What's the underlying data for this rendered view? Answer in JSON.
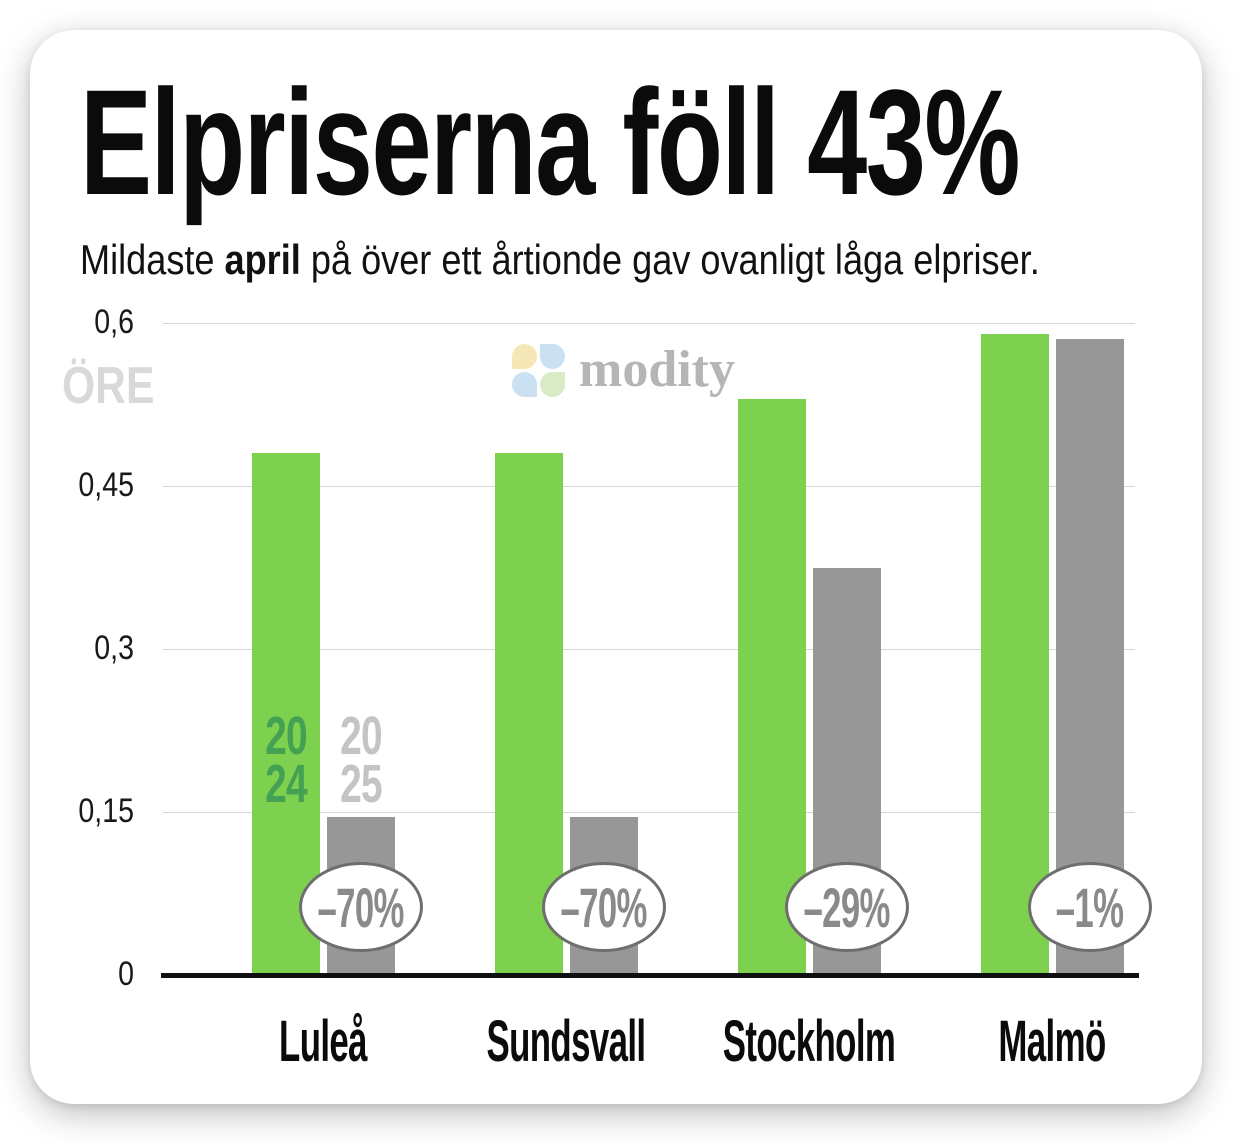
{
  "page": {
    "title": "Elpriserna föll 43%",
    "subtitle": {
      "prefix": "Mildaste ",
      "bold": "april",
      "suffix": " på över ett årtionde gav ovanligt låga elpriser."
    }
  },
  "logo": {
    "wordmark": "modity",
    "petal_colors": {
      "tl": "#f6e7b7",
      "tr": "#cbe0f1",
      "bl": "#cbe0f1",
      "br": "#d9ebc4"
    }
  },
  "chart_data": {
    "type": "bar",
    "title": "Elpriserna föll 43%",
    "subtitle": "Mildaste april på över ett årtionde gav ovanligt låga elpriser.",
    "unit_label": "ÖRE",
    "categories": [
      "Luleå",
      "Sundsvall",
      "Stockholm",
      "Malmö"
    ],
    "series": [
      {
        "name": "2024",
        "label_lines": "20\n24",
        "color": "#7ed14f",
        "label_color": "#44a053",
        "values": [
          0.48,
          0.48,
          0.53,
          0.59
        ]
      },
      {
        "name": "2025",
        "label_lines": "20\n25",
        "color": "#979797",
        "label_color": "#c4c4c4",
        "values": [
          0.145,
          0.145,
          0.375,
          0.585
        ]
      }
    ],
    "change_badges": [
      "–70%",
      "–70%",
      "–29%",
      "–1%"
    ],
    "ylim": [
      0,
      0.6
    ],
    "yticks": [
      {
        "value": 0,
        "label": "0"
      },
      {
        "value": 0.15,
        "label": "0,15"
      },
      {
        "value": 0.3,
        "label": "0,3"
      },
      {
        "value": 0.45,
        "label": "0,45"
      },
      {
        "value": 0.6,
        "label": "0,6"
      }
    ],
    "grid": true,
    "axis_color": "#101010",
    "gridline_color": "#d7d7d7",
    "badge_border_color": "#6e6e6e",
    "badge_text_color": "#8a8a8a"
  }
}
